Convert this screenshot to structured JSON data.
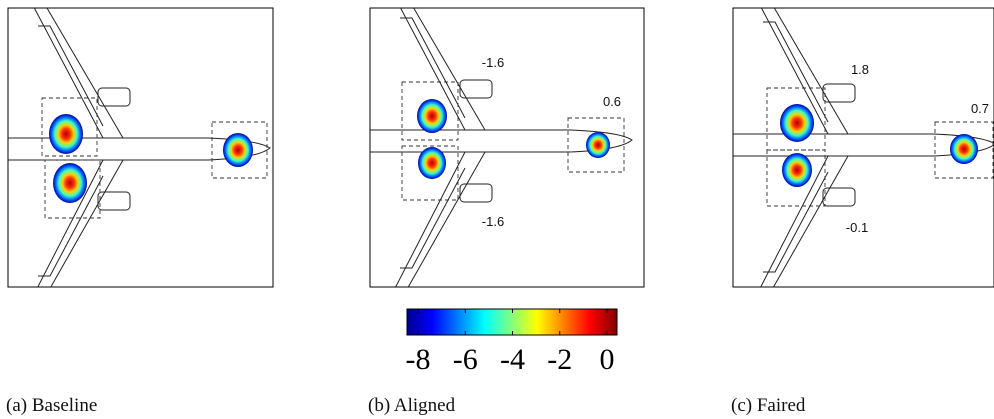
{
  "panels": [
    {
      "caption": "(a) Baseline",
      "annotations": []
    },
    {
      "caption": "(b) Aligned",
      "annotations": [
        -1.6,
        0.6,
        -1.6
      ]
    },
    {
      "caption": "(c) Faired",
      "annotations": [
        1.8,
        0.7,
        -0.1
      ]
    }
  ],
  "colorbar": {
    "range": [
      -8,
      0
    ],
    "ticks": [
      -8,
      -6,
      -4,
      -2,
      0
    ]
  }
}
